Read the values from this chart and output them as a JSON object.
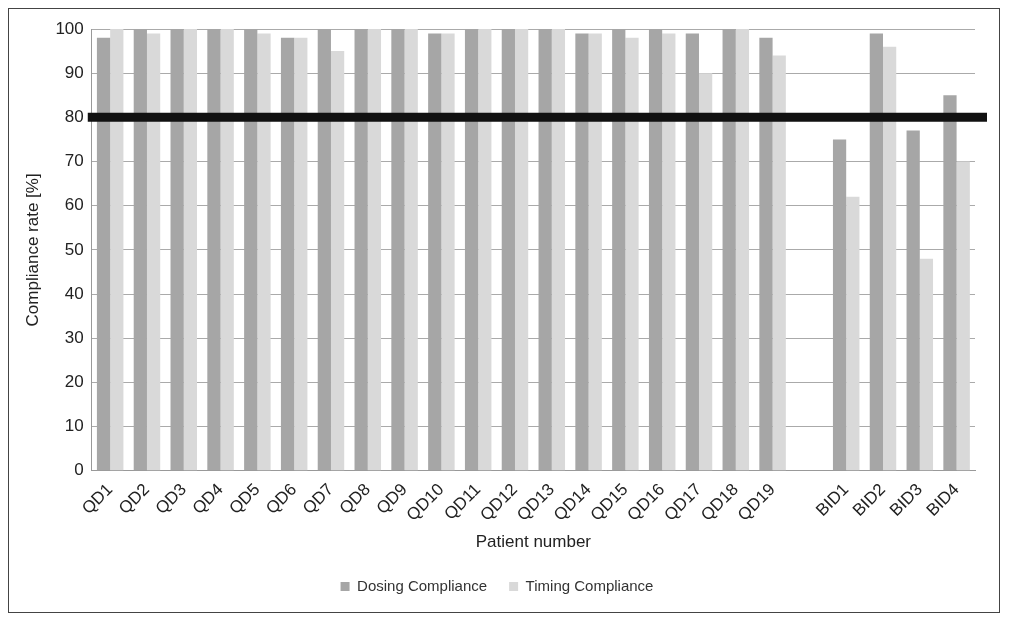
{
  "chart_data": {
    "type": "bar",
    "xlabel": "Patient number",
    "ylabel": "Compliance rate [%]",
    "categories": [
      "QD1",
      "QD2",
      "QD3",
      "QD4",
      "QD5",
      "QD6",
      "QD7",
      "QD8",
      "QD9",
      "QD10",
      "QD11",
      "QD12",
      "QD13",
      "QD14",
      "QD15",
      "QD16",
      "QD17",
      "QD18",
      "QD19",
      null,
      "BID1",
      "BID2",
      "BID3",
      "BID4"
    ],
    "series": [
      {
        "name": "Dosing Compliance",
        "color": "#a6a6a6",
        "values": [
          98,
          100,
          100,
          100,
          100,
          98,
          100,
          100,
          100,
          99,
          100,
          100,
          100,
          99,
          100,
          100,
          99,
          100,
          98,
          null,
          75,
          99,
          77,
          85
        ]
      },
      {
        "name": "Timing Compliance",
        "color": "#d9d9d9",
        "values": [
          100,
          99,
          100,
          100,
          99,
          98,
          95,
          100,
          100,
          99,
          100,
          100,
          100,
          99,
          98,
          99,
          90,
          100,
          94,
          null,
          62,
          96,
          48,
          70
        ]
      }
    ],
    "ylim": [
      0,
      100
    ],
    "yticks": [
      0,
      10,
      20,
      30,
      40,
      50,
      60,
      70,
      80,
      90,
      100
    ],
    "grid": "y",
    "legend": "bottom",
    "ref_lines": [
      {
        "axis": "y",
        "value": 80,
        "color": "#111111"
      }
    ]
  }
}
